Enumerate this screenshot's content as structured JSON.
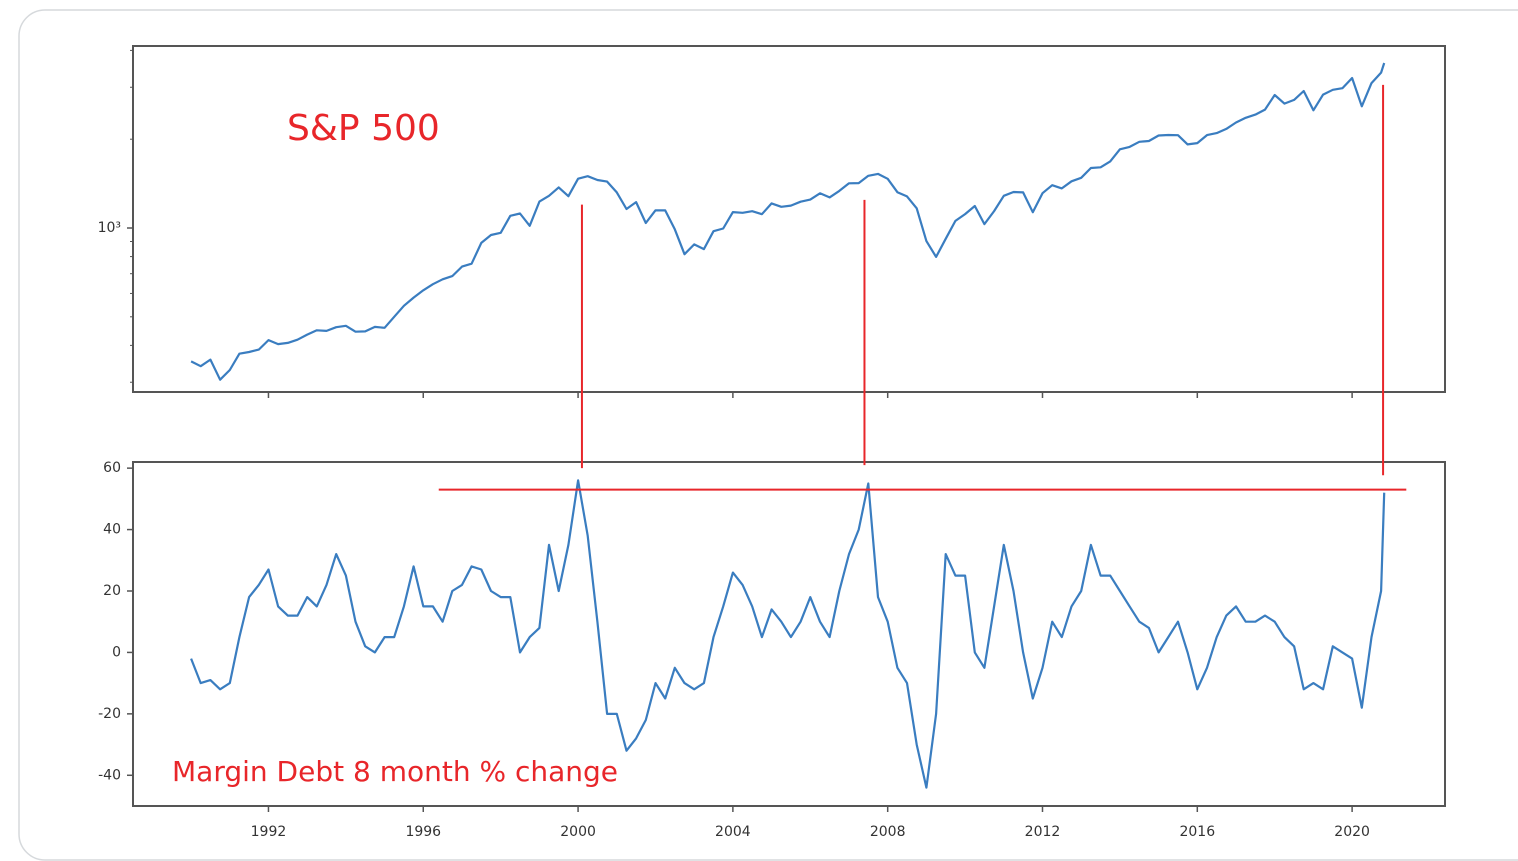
{
  "chart_data": [
    {
      "type": "line",
      "annotation": "S&P 500",
      "log_y": true,
      "xticklabels": false,
      "xlim": [
        1988.5,
        2022.4
      ],
      "xticks": [
        1992,
        1996,
        2000,
        2004,
        2008,
        2012,
        2016,
        2020
      ],
      "ylim": [
        278,
        4140
      ],
      "yticks": [
        {
          "value": 1000,
          "label": "10³"
        }
      ],
      "yminorticks": [
        300,
        400,
        500,
        600,
        700,
        800,
        900,
        2000,
        3000,
        4000
      ],
      "series": [
        {
          "color": "#3a7dc0",
          "x": [
            1990,
            1990.25,
            1990.5,
            1990.75,
            1991,
            1991.25,
            1991.5,
            1991.75,
            1992,
            1992.25,
            1992.5,
            1992.75,
            1993,
            1993.25,
            1993.5,
            1993.75,
            1994,
            1994.25,
            1994.5,
            1994.75,
            1995,
            1995.25,
            1995.5,
            1995.75,
            1996,
            1996.25,
            1996.5,
            1996.75,
            1997,
            1997.25,
            1997.5,
            1997.75,
            1998,
            1998.25,
            1998.5,
            1998.75,
            1999,
            1999.25,
            1999.5,
            1999.75,
            2000,
            2000.25,
            2000.5,
            2000.75,
            2001,
            2001.25,
            2001.5,
            2001.75,
            2002,
            2002.25,
            2002.5,
            2002.75,
            2003,
            2003.25,
            2003.5,
            2003.75,
            2004,
            2004.25,
            2004.5,
            2004.75,
            2005,
            2005.25,
            2005.5,
            2005.75,
            2006,
            2006.25,
            2006.5,
            2006.75,
            2007,
            2007.25,
            2007.5,
            2007.75,
            2008,
            2008.25,
            2008.5,
            2008.75,
            2009,
            2009.25,
            2009.5,
            2009.75,
            2010,
            2010.25,
            2010.5,
            2010.75,
            2011,
            2011.25,
            2011.5,
            2011.75,
            2012,
            2012.25,
            2012.5,
            2012.75,
            2013,
            2013.25,
            2013.5,
            2013.75,
            2014,
            2014.25,
            2014.5,
            2014.75,
            2015,
            2015.25,
            2015.5,
            2015.75,
            2016,
            2016.25,
            2016.5,
            2016.75,
            2017,
            2017.25,
            2017.5,
            2017.75,
            2018,
            2018.25,
            2018.5,
            2018.75,
            2019,
            2019.25,
            2019.5,
            2019.75,
            2020,
            2020.25,
            2020.5,
            2020.75,
            2020.83
          ],
          "values": [
            353,
            340,
            358,
            306,
            330,
            375,
            380,
            387,
            417,
            404,
            408,
            418,
            435,
            450,
            448,
            461,
            466,
            445,
            446,
            462,
            459,
            500,
            545,
            581,
            615,
            645,
            670,
            687,
            740,
            757,
            890,
            947,
            963,
            1100,
            1120,
            1017,
            1229,
            1286,
            1373,
            1282,
            1469,
            1498,
            1455,
            1436,
            1320,
            1160,
            1224,
            1040,
            1148,
            1147,
            990,
            815,
            880,
            848,
            975,
            996,
            1132,
            1126,
            1140,
            1114,
            1212,
            1180,
            1191,
            1228,
            1248,
            1311,
            1270,
            1336,
            1418,
            1420,
            1503,
            1526,
            1468,
            1322,
            1280,
            1166,
            903,
            798,
            919,
            1057,
            1115,
            1187,
            1031,
            1141,
            1286,
            1325,
            1320,
            1131,
            1312,
            1397,
            1362,
            1440,
            1480,
            1597,
            1606,
            1682,
            1848,
            1883,
            1960,
            1972,
            2059,
            2067,
            2063,
            1920,
            1940,
            2065,
            2098,
            2168,
            2279,
            2363,
            2423,
            2519,
            2824,
            2640,
            2718,
            2913,
            2507,
            2834,
            2941,
            2977,
            3225,
            2585,
            3100,
            3363,
            3626
          ]
        }
      ]
    },
    {
      "type": "line",
      "annotation": "Margin Debt 8 month % change",
      "xlim": [
        1988.5,
        2022.4
      ],
      "xticks": [
        1992,
        1996,
        2000,
        2004,
        2008,
        2012,
        2016,
        2020
      ],
      "ylim": [
        -50,
        62
      ],
      "yticks": [
        -40,
        -20,
        0,
        20,
        40,
        60
      ],
      "series": [
        {
          "color": "#3a7dc0",
          "x": [
            1990,
            1990.25,
            1990.5,
            1990.75,
            1991,
            1991.25,
            1991.5,
            1991.75,
            1992,
            1992.25,
            1992.5,
            1992.75,
            1993,
            1993.25,
            1993.5,
            1993.75,
            1994,
            1994.25,
            1994.5,
            1994.75,
            1995,
            1995.25,
            1995.5,
            1995.75,
            1996,
            1996.25,
            1996.5,
            1996.75,
            1997,
            1997.25,
            1997.5,
            1997.75,
            1998,
            1998.25,
            1998.5,
            1998.75,
            1999,
            1999.25,
            1999.5,
            1999.75,
            2000,
            2000.25,
            2000.5,
            2000.75,
            2001,
            2001.25,
            2001.5,
            2001.75,
            2002,
            2002.25,
            2002.5,
            2002.75,
            2003,
            2003.25,
            2003.5,
            2003.75,
            2004,
            2004.25,
            2004.5,
            2004.75,
            2005,
            2005.25,
            2005.5,
            2005.75,
            2006,
            2006.25,
            2006.5,
            2006.75,
            2007,
            2007.25,
            2007.5,
            2007.75,
            2008,
            2008.25,
            2008.5,
            2008.75,
            2009,
            2009.25,
            2009.5,
            2009.75,
            2010,
            2010.25,
            2010.5,
            2010.75,
            2011,
            2011.25,
            2011.5,
            2011.75,
            2012,
            2012.25,
            2012.5,
            2012.75,
            2013,
            2013.25,
            2013.5,
            2013.75,
            2014,
            2014.25,
            2014.5,
            2014.75,
            2015,
            2015.25,
            2015.5,
            2015.75,
            2016,
            2016.25,
            2016.5,
            2016.75,
            2017,
            2017.25,
            2017.5,
            2017.75,
            2018,
            2018.25,
            2018.5,
            2018.75,
            2019,
            2019.25,
            2019.5,
            2019.75,
            2020,
            2020.25,
            2020.5,
            2020.75,
            2020.83
          ],
          "values": [
            -2,
            -10,
            -9,
            -12,
            -10,
            5,
            18,
            22,
            27,
            15,
            12,
            12,
            18,
            15,
            22,
            32,
            25,
            10,
            2,
            0,
            5,
            5,
            15,
            28,
            15,
            15,
            10,
            20,
            22,
            28,
            27,
            20,
            18,
            18,
            0,
            5,
            8,
            35,
            20,
            35,
            56,
            38,
            10,
            -20,
            -20,
            -32,
            -28,
            -22,
            -10,
            -15,
            -5,
            -10,
            -12,
            -10,
            5,
            15,
            26,
            22,
            15,
            5,
            14,
            10,
            5,
            10,
            18,
            10,
            5,
            20,
            32,
            40,
            55,
            18,
            10,
            -5,
            -10,
            -30,
            -44,
            -20,
            32,
            25,
            25,
            0,
            -5,
            15,
            35,
            20,
            0,
            -15,
            -5,
            10,
            5,
            15,
            20,
            35,
            25,
            25,
            20,
            15,
            10,
            8,
            0,
            5,
            10,
            0,
            -12,
            -5,
            5,
            12,
            15,
            10,
            10,
            12,
            10,
            5,
            2,
            -12,
            -10,
            -12,
            2,
            0,
            -2,
            -18,
            5,
            20,
            52
          ]
        }
      ]
    }
  ],
  "guides": {
    "color": "#e8262a",
    "vlines": [
      {
        "x": 2000.1,
        "top": 1200,
        "bottom": 60
      },
      {
        "x": 2007.4,
        "top": 1245,
        "bottom": 61
      },
      {
        "x": 2020.8,
        "top": 3055,
        "bottom": 57.7
      }
    ],
    "hline": {
      "y": 53,
      "x": [
        1996.4,
        2021.4
      ]
    }
  }
}
